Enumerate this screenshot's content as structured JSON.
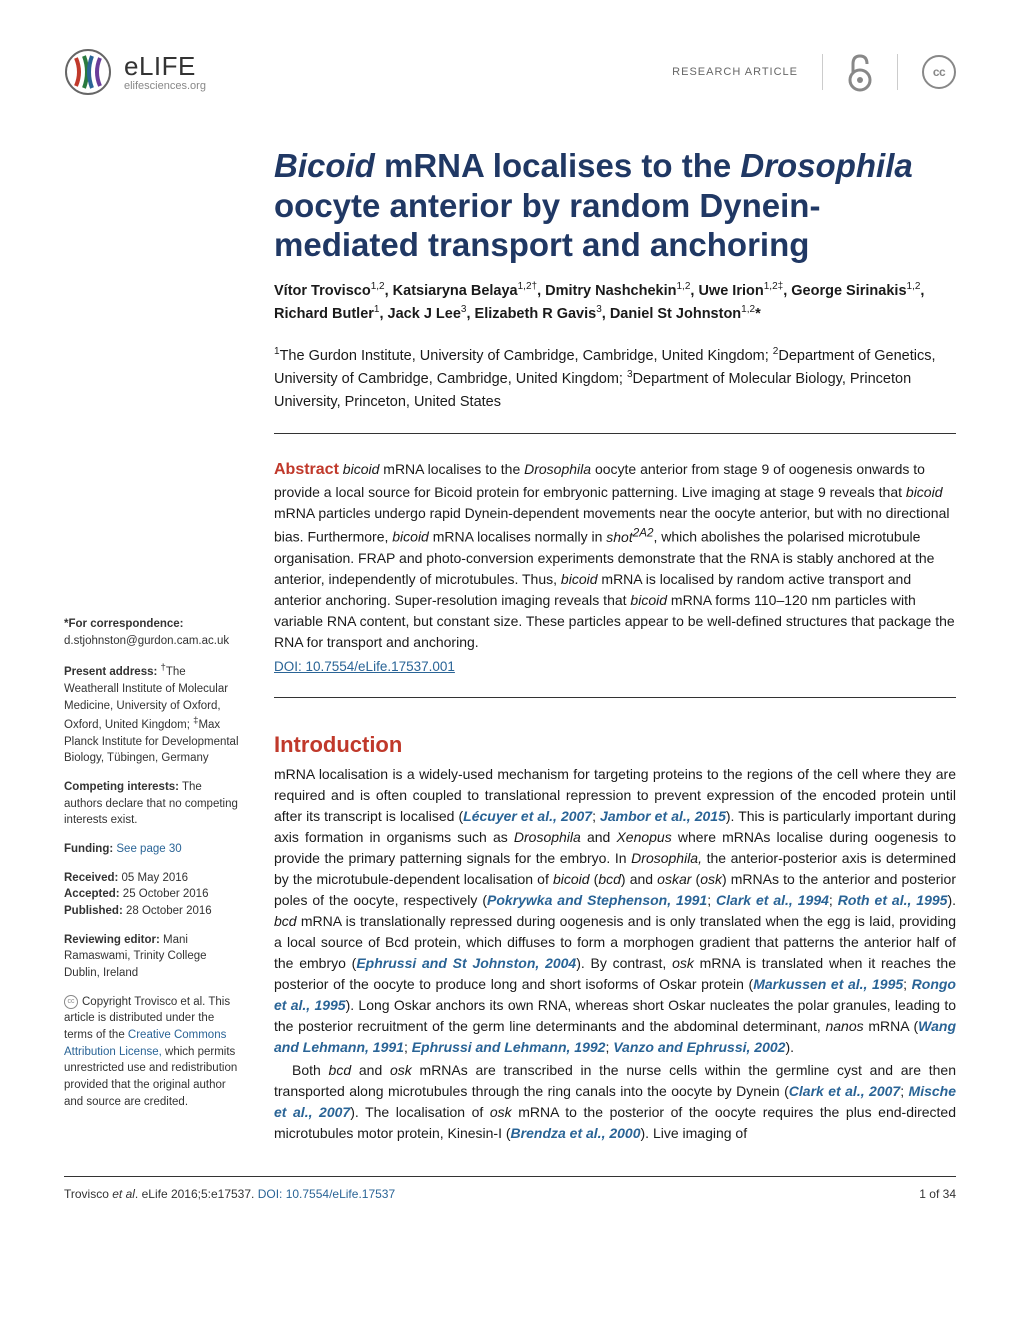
{
  "header": {
    "journal_name": "eLIFE",
    "journal_url": "elifesciences.org",
    "article_type": "RESEARCH ARTICLE",
    "cc_label": "cc"
  },
  "title": {
    "part1_italic": "Bicoid",
    "part2": " mRNA localises to the ",
    "part3_italic": "Drosophila",
    "part4": " oocyte anterior by random Dynein-mediated transport and anchoring"
  },
  "authors_html": "Vítor Trovisco<sup>1,2</sup>, Katsiaryna Belaya<sup>1,2†</sup>, Dmitry Nashchekin<sup>1,2</sup>, Uwe Irion<sup>1,2‡</sup>, George Sirinakis<sup>1,2</sup>, Richard Butler<sup>1</sup>, Jack J Lee<sup>3</sup>, Elizabeth R Gavis<sup>3</sup>, Daniel St Johnston<sup>1,2</sup>*",
  "affiliations_html": "<sup>1</sup>The Gurdon Institute, University of Cambridge, Cambridge, United Kingdom; <sup>2</sup>Department of Genetics, University of Cambridge, Cambridge, United Kingdom; <sup>3</sup>Department of Molecular Biology, Princeton University, Princeton, United States",
  "abstract": {
    "label": "Abstract",
    "text_html": " <span class=\"italic\">bicoid</span> mRNA localises to the <span class=\"italic\">Drosophila</span> oocyte anterior from stage 9 of oogenesis onwards to provide a local source for Bicoid protein for embryonic patterning. Live imaging at stage 9 reveals that <span class=\"italic\">bicoid</span> mRNA particles undergo rapid Dynein-dependent movements near the oocyte anterior, but with no directional bias. Furthermore, <span class=\"italic\">bicoid</span> mRNA localises normally in <span class=\"italic\">shot<sup>2A2</sup></span>, which abolishes the polarised microtubule organisation. FRAP and photo-conversion experiments demonstrate that the RNA is stably anchored at the anterior, independently of microtubules. Thus, <span class=\"italic\">bicoid</span> mRNA is localised by random active transport and anterior anchoring. Super-resolution imaging reveals that <span class=\"italic\">bicoid</span> mRNA forms 110–120 nm particles with variable RNA content, but constant size. These particles appear to be well-defined structures that package the RNA for transport and anchoring.",
    "doi": "DOI: 10.7554/eLife.17537.001"
  },
  "sidebar": {
    "correspondence_label": "*For correspondence:",
    "correspondence_email": "d.stjohnston@gurdon.cam.ac.uk",
    "present_label": "Present address:",
    "present_text": " <sup>†</sup>The Weatherall Institute of Molecular Medicine, University of Oxford, Oxford, United Kingdom; <sup>‡</sup>Max Planck Institute for Developmental Biology, Tübingen, Germany",
    "competing_label": "Competing interests:",
    "competing_text": " The authors declare that no competing interests exist.",
    "funding_label": "Funding:",
    "funding_link": "See page 30",
    "received_label": "Received:",
    "received_date": " 05 May 2016",
    "accepted_label": "Accepted:",
    "accepted_date": " 25 October 2016",
    "published_label": "Published:",
    "published_date": " 28 October 2016",
    "editor_label": "Reviewing editor:",
    "editor_text": " Mani Ramaswami, Trinity College Dublin, Ireland",
    "copyright_text": "Copyright Trovisco et al. This article is distributed under the terms of the ",
    "copyright_link": "Creative Commons Attribution License,",
    "copyright_suffix": " which permits unrestricted use and redistribution provided that the original author and source are credited."
  },
  "intro": {
    "heading": "Introduction",
    "para1_html": "mRNA localisation is a widely-used mechanism for targeting proteins to the regions of the cell where they are required and is often coupled to translational repression to prevent expression of the encoded protein until after its transcript is localised (<span class=\"ref\">Lécuyer et al., 2007</span>; <span class=\"ref\">Jambor et al., 2015</span>). This is particularly important during axis formation in organisms such as <span class=\"italic\">Drosophila</span> and <span class=\"italic\">Xenopus</span> where mRNAs localise during oogenesis to provide the primary patterning signals for the embryo. In <span class=\"italic\">Drosophila,</span> the anterior-posterior axis is determined by the microtubule-dependent localisation of <span class=\"italic\">bicoid</span> (<span class=\"italic\">bcd</span>) and <span class=\"italic\">oskar</span> (<span class=\"italic\">osk</span>) mRNAs to the anterior and posterior poles of the oocyte, respectively (<span class=\"ref\">Pokrywka and Stephenson, 1991</span>; <span class=\"ref\">Clark et al., 1994</span>; <span class=\"ref\">Roth et al., 1995</span>). <span class=\"italic\">bcd</span> mRNA is translationally repressed during oogenesis and is only translated when the egg is laid, providing a local source of Bcd protein, which diffuses to form a morphogen gradient that patterns the anterior half of the embryo (<span class=\"ref\">Ephrussi and St Johnston, 2004</span>). By contrast, <span class=\"italic\">osk</span> mRNA is translated when it reaches the posterior of the oocyte to produce long and short isoforms of Oskar protein (<span class=\"ref\">Markussen et al., 1995</span>; <span class=\"ref\">Rongo et al., 1995</span>). Long Oskar anchors its own RNA, whereas short Oskar nucleates the polar granules, leading to the posterior recruitment of the germ line determinants and the abdominal determinant, <span class=\"italic\">nanos</span> mRNA (<span class=\"ref\">Wang and Lehmann, 1991</span>; <span class=\"ref\">Ephrussi and Lehmann, 1992</span>; <span class=\"ref\">Vanzo and Ephrussi, 2002</span>).",
    "para2_html": "Both <span class=\"italic\">bcd</span> and <span class=\"italic\">osk</span> mRNAs are transcribed in the nurse cells within the germline cyst and are then transported along microtubules through the ring canals into the oocyte by Dynein (<span class=\"ref\">Clark et al., 2007</span>; <span class=\"ref\">Mische et al., 2007</span>). The localisation of <span class=\"italic\">osk</span> mRNA to the posterior of the oocyte requires the plus end-directed microtubules motor protein, Kinesin-I (<span class=\"ref\">Brendza et al., 2000</span>). Live imaging of"
  },
  "footer": {
    "citation_prefix": "Trovisco ",
    "citation_etal": "et al",
    "citation_suffix": ". eLife 2016;5:e17537. ",
    "doi_link": "DOI: 10.7554/eLife.17537",
    "page_num": "1 of 34"
  },
  "colors": {
    "title": "#203864",
    "accent": "#c0392b",
    "link": "#2a6496"
  }
}
